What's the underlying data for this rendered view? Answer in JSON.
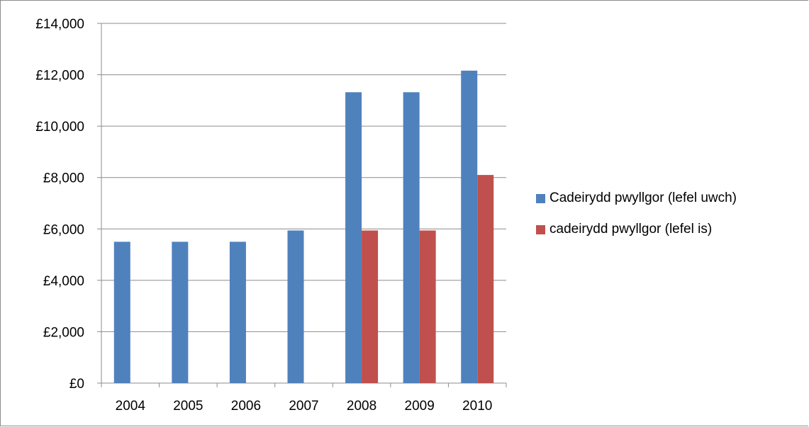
{
  "chart_data": {
    "type": "bar",
    "categories": [
      "2004",
      "2005",
      "2006",
      "2007",
      "2008",
      "2009",
      "2010"
    ],
    "series": [
      {
        "name": "Cadeirydd pwyllgor (lefel uwch)",
        "color": "#4f81bd",
        "values": [
          5500,
          5500,
          5500,
          5940,
          11320,
          11320,
          12160
        ]
      },
      {
        "name": "cadeirydd pwyllgor (lefel is)",
        "color": "#c0504d",
        "values": [
          null,
          null,
          null,
          null,
          5940,
          5940,
          8100
        ]
      }
    ],
    "ylim": [
      0,
      14000
    ],
    "yticks": [
      0,
      2000,
      4000,
      6000,
      8000,
      10000,
      12000,
      14000
    ],
    "ytick_labels": [
      "£0",
      "£2,000",
      "£4,000",
      "£6,000",
      "£8,000",
      "£10,000",
      "£12,000",
      "£14,000"
    ],
    "grid": true,
    "legend_position": "right",
    "title": "",
    "xlabel": "",
    "ylabel": ""
  }
}
